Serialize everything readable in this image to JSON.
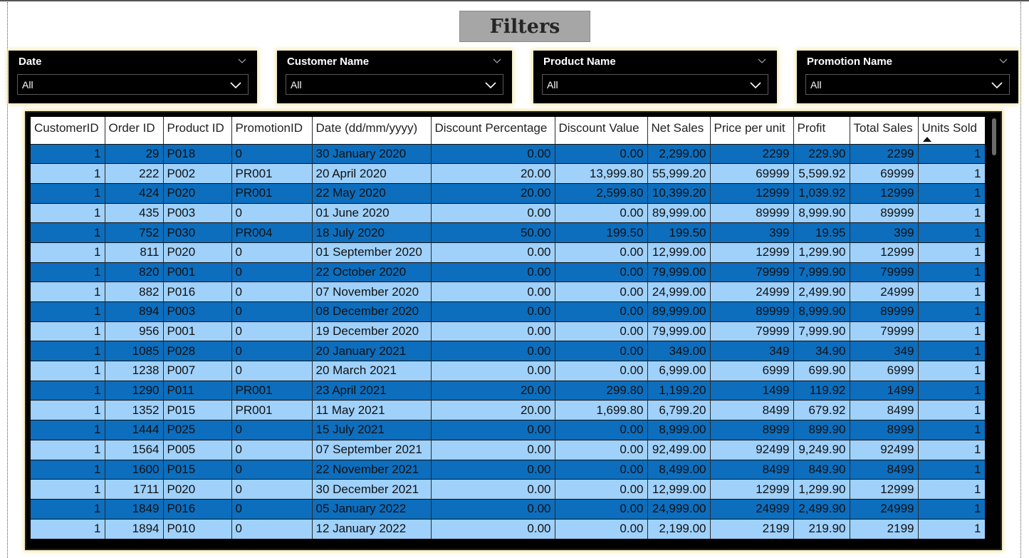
{
  "title": "Filters",
  "slicers": [
    {
      "label": "Date",
      "value": "All"
    },
    {
      "label": "Customer Name",
      "value": "All"
    },
    {
      "label": "Product Name",
      "value": "All"
    },
    {
      "label": "Promotion Name",
      "value": "All"
    }
  ],
  "table": {
    "columns": [
      "CustomerID",
      "Order ID",
      "Product ID",
      "PromotionID",
      "Date (dd/mm/yyyy)",
      "Discount Percentage",
      "Discount Value",
      "Net Sales",
      "Price per unit",
      "Profit",
      "Total Sales",
      "Units Sold"
    ],
    "sorted_column": "Units Sold",
    "sort_direction": "ascending",
    "rows": [
      [
        "1",
        "29",
        "P018",
        "0",
        "30 January 2020",
        "0.00",
        "0.00",
        "2,299.00",
        "2299",
        "229.90",
        "2299",
        "1"
      ],
      [
        "1",
        "222",
        "P002",
        "PR001",
        "20 April 2020",
        "20.00",
        "13,999.80",
        "55,999.20",
        "69999",
        "5,599.92",
        "69999",
        "1"
      ],
      [
        "1",
        "424",
        "P020",
        "PR001",
        "22 May 2020",
        "20.00",
        "2,599.80",
        "10,399.20",
        "12999",
        "1,039.92",
        "12999",
        "1"
      ],
      [
        "1",
        "435",
        "P003",
        "0",
        "01 June 2020",
        "0.00",
        "0.00",
        "89,999.00",
        "89999",
        "8,999.90",
        "89999",
        "1"
      ],
      [
        "1",
        "752",
        "P030",
        "PR004",
        "18 July 2020",
        "50.00",
        "199.50",
        "199.50",
        "399",
        "19.95",
        "399",
        "1"
      ],
      [
        "1",
        "811",
        "P020",
        "0",
        "01 September 2020",
        "0.00",
        "0.00",
        "12,999.00",
        "12999",
        "1,299.90",
        "12999",
        "1"
      ],
      [
        "1",
        "820",
        "P001",
        "0",
        "22 October 2020",
        "0.00",
        "0.00",
        "79,999.00",
        "79999",
        "7,999.90",
        "79999",
        "1"
      ],
      [
        "1",
        "882",
        "P016",
        "0",
        "07 November 2020",
        "0.00",
        "0.00",
        "24,999.00",
        "24999",
        "2,499.90",
        "24999",
        "1"
      ],
      [
        "1",
        "894",
        "P003",
        "0",
        "08 December 2020",
        "0.00",
        "0.00",
        "89,999.00",
        "89999",
        "8,999.90",
        "89999",
        "1"
      ],
      [
        "1",
        "956",
        "P001",
        "0",
        "19 December 2020",
        "0.00",
        "0.00",
        "79,999.00",
        "79999",
        "7,999.90",
        "79999",
        "1"
      ],
      [
        "1",
        "1085",
        "P028",
        "0",
        "20 January 2021",
        "0.00",
        "0.00",
        "349.00",
        "349",
        "34.90",
        "349",
        "1"
      ],
      [
        "1",
        "1238",
        "P007",
        "0",
        "20 March 2021",
        "0.00",
        "0.00",
        "6,999.00",
        "6999",
        "699.90",
        "6999",
        "1"
      ],
      [
        "1",
        "1290",
        "P011",
        "PR001",
        "23 April 2021",
        "20.00",
        "299.80",
        "1,199.20",
        "1499",
        "119.92",
        "1499",
        "1"
      ],
      [
        "1",
        "1352",
        "P015",
        "PR001",
        "11 May 2021",
        "20.00",
        "1,699.80",
        "6,799.20",
        "8499",
        "679.92",
        "8499",
        "1"
      ],
      [
        "1",
        "1444",
        "P025",
        "0",
        "15 July 2021",
        "0.00",
        "0.00",
        "8,999.00",
        "8999",
        "899.90",
        "8999",
        "1"
      ],
      [
        "1",
        "1564",
        "P005",
        "0",
        "07 September 2021",
        "0.00",
        "0.00",
        "92,499.00",
        "92499",
        "9,249.90",
        "92499",
        "1"
      ],
      [
        "1",
        "1600",
        "P015",
        "0",
        "22 November 2021",
        "0.00",
        "0.00",
        "8,499.00",
        "8499",
        "849.90",
        "8499",
        "1"
      ],
      [
        "1",
        "1711",
        "P020",
        "0",
        "30 December 2021",
        "0.00",
        "0.00",
        "12,999.00",
        "12999",
        "1,299.90",
        "12999",
        "1"
      ],
      [
        "1",
        "1849",
        "P016",
        "0",
        "05 January 2022",
        "0.00",
        "0.00",
        "24,999.00",
        "24999",
        "2,499.90",
        "24999",
        "1"
      ],
      [
        "1",
        "1894",
        "P010",
        "0",
        "12 January 2022",
        "0.00",
        "0.00",
        "2,199.00",
        "2199",
        "219.90",
        "2199",
        "1"
      ]
    ]
  },
  "colors": {
    "row_dark": "#0d6ebe",
    "row_light": "#9fd1fb",
    "slicer_bg": "#000000",
    "title_bg": "#a6a6a6",
    "glow": "#f0e6a8"
  }
}
